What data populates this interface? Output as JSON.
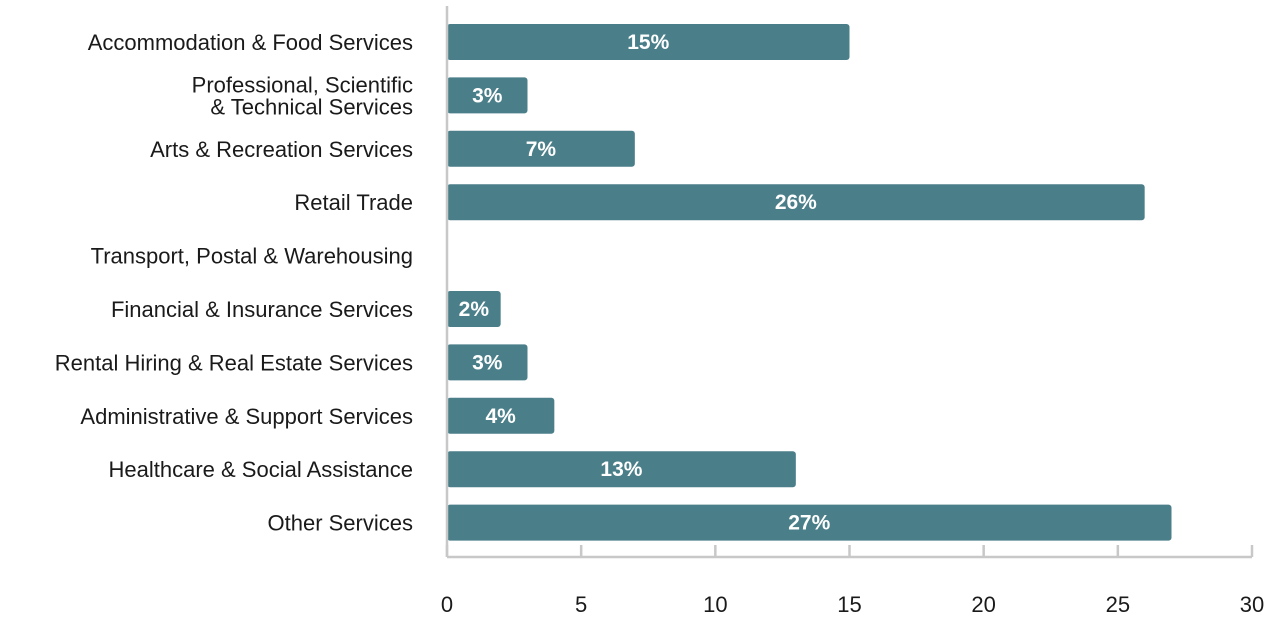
{
  "chart_data": {
    "type": "bar",
    "orientation": "horizontal",
    "categories": [
      [
        "Accommodation & Food Services"
      ],
      [
        "Professional, Scientific",
        "& Technical Services"
      ],
      [
        "Arts & Recreation Services"
      ],
      [
        "Retail Trade"
      ],
      [
        "Transport, Postal & Warehousing"
      ],
      [
        "Financial & Insurance Services"
      ],
      [
        "Rental Hiring & Real Estate Services"
      ],
      [
        "Administrative & Support Services"
      ],
      [
        "Healthcare & Social Assistance"
      ],
      [
        "Other Services"
      ]
    ],
    "values": [
      15,
      3,
      7,
      26,
      0,
      2,
      3,
      4,
      13,
      27
    ],
    "data_labels": [
      "15%",
      "3%",
      "7%",
      "26%",
      "",
      "2%",
      "3%",
      "4%",
      "13%",
      "27%"
    ],
    "xlim": [
      0,
      30
    ],
    "x_ticks": [
      0,
      5,
      10,
      15,
      20,
      25,
      30
    ],
    "title": "",
    "xlabel": "",
    "ylabel": "",
    "grid": false,
    "legend": "none",
    "bar_color": "#4a7f8a",
    "axis_color": "#c8c8c8"
  }
}
